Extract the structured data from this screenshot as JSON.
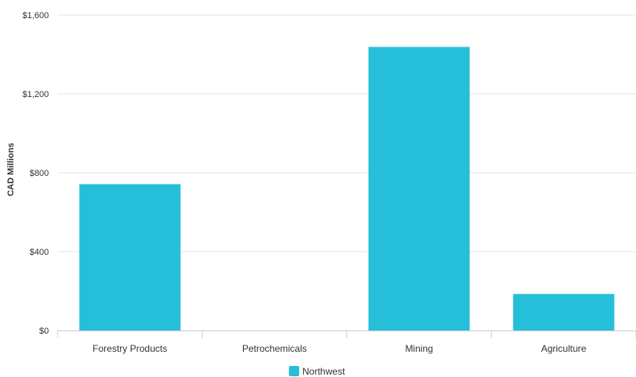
{
  "chart_data": {
    "type": "bar",
    "categories": [
      "Forestry Products",
      "Petrochemicals",
      "Mining",
      "Agriculture"
    ],
    "series": [
      {
        "name": "Northwest",
        "values": [
          742,
          0,
          1438,
          185
        ],
        "color": "#26BFD9"
      }
    ],
    "ylabel": "CAD Millions",
    "ylim": [
      0,
      1600
    ],
    "yticks": [
      0,
      400,
      800,
      1200,
      1600
    ],
    "ytick_labels": [
      "$0",
      "$400",
      "$800",
      "$1,200",
      "$1,600"
    ],
    "grid": true,
    "legend_position": "bottom"
  }
}
